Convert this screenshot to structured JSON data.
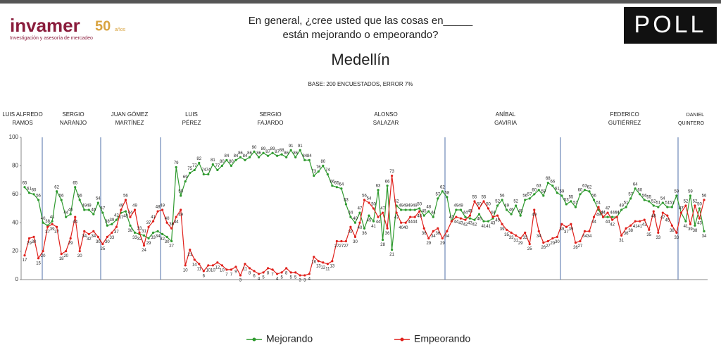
{
  "header": {
    "brand": "invamer",
    "brand_years": "50",
    "brand_years_unit": "años",
    "brand_tagline": "Investigación y asesoría de mercadeo",
    "question": [
      "En general, ¿cree usted que las cosas en_____",
      "están mejorando o empeorando?"
    ],
    "logo": "POLL"
  },
  "periods": [
    [
      "LUIS ALFREDO",
      "RAMOS"
    ],
    [
      "SERGIO",
      "NARANJO"
    ],
    [
      "JUAN GÓMEZ",
      "MARTÍNEZ"
    ],
    [
      "LUIS",
      "PÉREZ"
    ],
    [
      "SERGIO",
      "FAJARDO"
    ],
    [
      "ALONSO",
      "SALAZAR"
    ],
    [
      "ANÍBAL",
      "GAVIRIA"
    ],
    [
      "FEDERICO",
      "GUTIÉRREZ"
    ],
    [
      "DANIEL",
      "QUINTERO"
    ]
  ],
  "chart_data": {
    "type": "line",
    "title": "Medellín",
    "subtitle": "BASE: 200 ENCUESTADOS, ERROR 7%",
    "ylim": [
      0,
      100
    ],
    "yticks": [
      0,
      20,
      40,
      60,
      80,
      100
    ],
    "series": [
      {
        "name": "Mejorando",
        "color": "#2e9a2e",
        "values": [
          65,
          61,
          60,
          56,
          40,
          38,
          41,
          62,
          56,
          44,
          46,
          65,
          56,
          49,
          49,
          46,
          54,
          47,
          38,
          39,
          42,
          47,
          48,
          38,
          33,
          32,
          31,
          29,
          33,
          34,
          32,
          30,
          27,
          79,
          59,
          69,
          75,
          77,
          82,
          74,
          74,
          81,
          77,
          80,
          84,
          80,
          84,
          86,
          84,
          86,
          90,
          86,
          89,
          87,
          89,
          87,
          88,
          86,
          91,
          86,
          91,
          84,
          84,
          73,
          76,
          80,
          74,
          66,
          65,
          64,
          53,
          44,
          40,
          47,
          36,
          45,
          41,
          63,
          28,
          66,
          21,
          52,
          49,
          49,
          49,
          49,
          50,
          45,
          48,
          44,
          57,
          62,
          58,
          41,
          49,
          49,
          44,
          43,
          42,
          46,
          41,
          41,
          43,
          52,
          56,
          49,
          46,
          52,
          45,
          56,
          57,
          60,
          63,
          59,
          68,
          66,
          61,
          59,
          53,
          55,
          51,
          60,
          63,
          62,
          56,
          49,
          44,
          44,
          44,
          44,
          49,
          51,
          57,
          64,
          60,
          56,
          55,
          52,
          51,
          54,
          51,
          51,
          59,
          47,
          41,
          59,
          38,
          50,
          34
        ]
      },
      {
        "name": "Empeorando",
        "color": "#e0201b",
        "values": [
          17,
          29,
          30,
          15,
          20,
          37,
          39,
          37,
          18,
          20,
          29,
          44,
          20,
          34,
          32,
          34,
          30,
          25,
          30,
          33,
          37,
          49,
          56,
          44,
          49,
          33,
          24,
          37,
          41,
          48,
          49,
          40,
          36,
          44,
          49,
          10,
          21,
          14,
          11,
          6,
          10,
          10,
          12,
          10,
          7,
          7,
          9,
          3,
          11,
          8,
          6,
          4,
          5,
          8,
          7,
          4,
          5,
          8,
          5,
          5,
          3,
          3,
          4,
          16,
          13,
          12,
          11,
          13,
          27,
          27,
          27,
          37,
          30,
          40,
          56,
          54,
          50,
          44,
          47,
          36,
          73,
          47,
          40,
          40,
          44,
          44,
          48,
          36,
          29,
          34,
          36,
          29,
          34,
          41,
          44,
          43,
          42,
          45,
          55,
          50,
          55,
          50,
          44,
          45,
          39,
          35,
          33,
          31,
          29,
          33,
          25,
          49,
          34,
          26,
          27,
          29,
          30,
          39,
          37,
          39,
          26,
          27,
          34,
          34,
          44,
          51,
          44,
          47,
          42,
          44,
          31,
          36,
          38,
          41,
          41,
          42,
          35,
          48,
          33,
          47,
          45,
          38,
          33,
          47,
          52,
          39,
          52,
          43,
          56
        ]
      }
    ]
  }
}
